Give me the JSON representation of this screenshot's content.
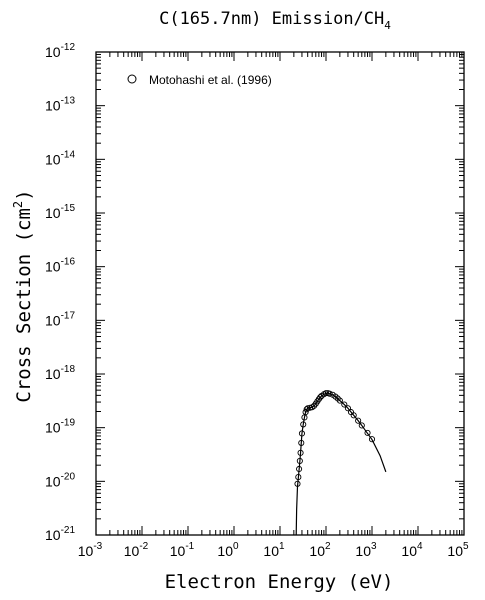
{
  "chart_data": {
    "type": "scatter",
    "title_main": "C(165.7nm) Emission/CH",
    "title_sub": "4",
    "xlabel": "Electron Energy (eV)",
    "ylabel": "Cross Section (cm",
    "ylabel_sup": "2",
    "ylabel_end": ")",
    "xscale": "log",
    "yscale": "log",
    "xlim": [
      0.001,
      100000
    ],
    "ylim": [
      1e-21,
      1e-12
    ],
    "x_tick_labels": [
      {
        "base": "10",
        "exp": "-3"
      },
      {
        "base": "10",
        "exp": "-2"
      },
      {
        "base": "10",
        "exp": "-1"
      },
      {
        "base": "10",
        "exp": "0"
      },
      {
        "base": "10",
        "exp": "1"
      },
      {
        "base": "10",
        "exp": "2"
      },
      {
        "base": "10",
        "exp": "3"
      },
      {
        "base": "10",
        "exp": "4"
      },
      {
        "base": "10",
        "exp": "5"
      }
    ],
    "y_tick_labels": [
      {
        "base": "10",
        "exp": "-21"
      },
      {
        "base": "10",
        "exp": "-20"
      },
      {
        "base": "10",
        "exp": "-19"
      },
      {
        "base": "10",
        "exp": "-18"
      },
      {
        "base": "10",
        "exp": "-17"
      },
      {
        "base": "10",
        "exp": "-16"
      },
      {
        "base": "10",
        "exp": "-15"
      },
      {
        "base": "10",
        "exp": "-14"
      },
      {
        "base": "10",
        "exp": "-13"
      },
      {
        "base": "10",
        "exp": "-12"
      }
    ],
    "grid": false,
    "legend_position": "top-left",
    "series": [
      {
        "name": "Motohashi et al. (1996)",
        "kind": "markers",
        "marker": "open-circle",
        "color": "#000000",
        "x": [
          24,
          25,
          26,
          27,
          28,
          29,
          30,
          32,
          34,
          36,
          38,
          40,
          45,
          50,
          55,
          60,
          65,
          70,
          75,
          80,
          90,
          100,
          110,
          120,
          140,
          160,
          180,
          200,
          250,
          300,
          350,
          400,
          500,
          600,
          800,
          1000
        ],
        "y": [
          9e-21,
          1.2e-20,
          1.7e-20,
          2.4e-20,
          3.4e-20,
          5.2e-20,
          7.8e-20,
          1.15e-19,
          1.55e-19,
          1.95e-19,
          2.2e-19,
          2.3e-19,
          2.35e-19,
          2.4e-19,
          2.55e-19,
          2.8e-19,
          3.1e-19,
          3.4e-19,
          3.7e-19,
          3.9e-19,
          4.2e-19,
          4.4e-19,
          4.4e-19,
          4.3e-19,
          4.1e-19,
          3.8e-19,
          3.5e-19,
          3.2e-19,
          2.7e-19,
          2.3e-19,
          1.95e-19,
          1.7e-19,
          1.35e-19,
          1.1e-19,
          8e-20,
          6.1e-20
        ]
      },
      {
        "name": "",
        "kind": "line",
        "color": "#000000",
        "x": [
          22.5,
          23,
          24,
          25,
          26,
          27,
          28,
          29,
          30,
          32,
          34,
          36,
          38,
          40,
          45,
          50,
          55,
          60,
          70,
          80,
          90,
          100,
          110,
          120,
          140,
          160,
          200,
          250,
          300,
          400,
          500,
          600,
          800,
          1000,
          1500,
          2000
        ],
        "y": [
          1e-21,
          3e-21,
          8e-21,
          1.15e-20,
          1.65e-20,
          2.35e-20,
          3.4e-20,
          5.2e-20,
          7.8e-20,
          1.15e-19,
          1.55e-19,
          1.95e-19,
          2.2e-19,
          2.3e-19,
          2.35e-19,
          2.4e-19,
          2.55e-19,
          2.8e-19,
          3.4e-19,
          3.9e-19,
          4.2e-19,
          4.35e-19,
          4.4e-19,
          4.3e-19,
          4.1e-19,
          3.8e-19,
          3.2e-19,
          2.7e-19,
          2.3e-19,
          1.7e-19,
          1.35e-19,
          1.1e-19,
          7.8e-20,
          6e-20,
          3e-20,
          1.5e-20
        ]
      }
    ]
  }
}
